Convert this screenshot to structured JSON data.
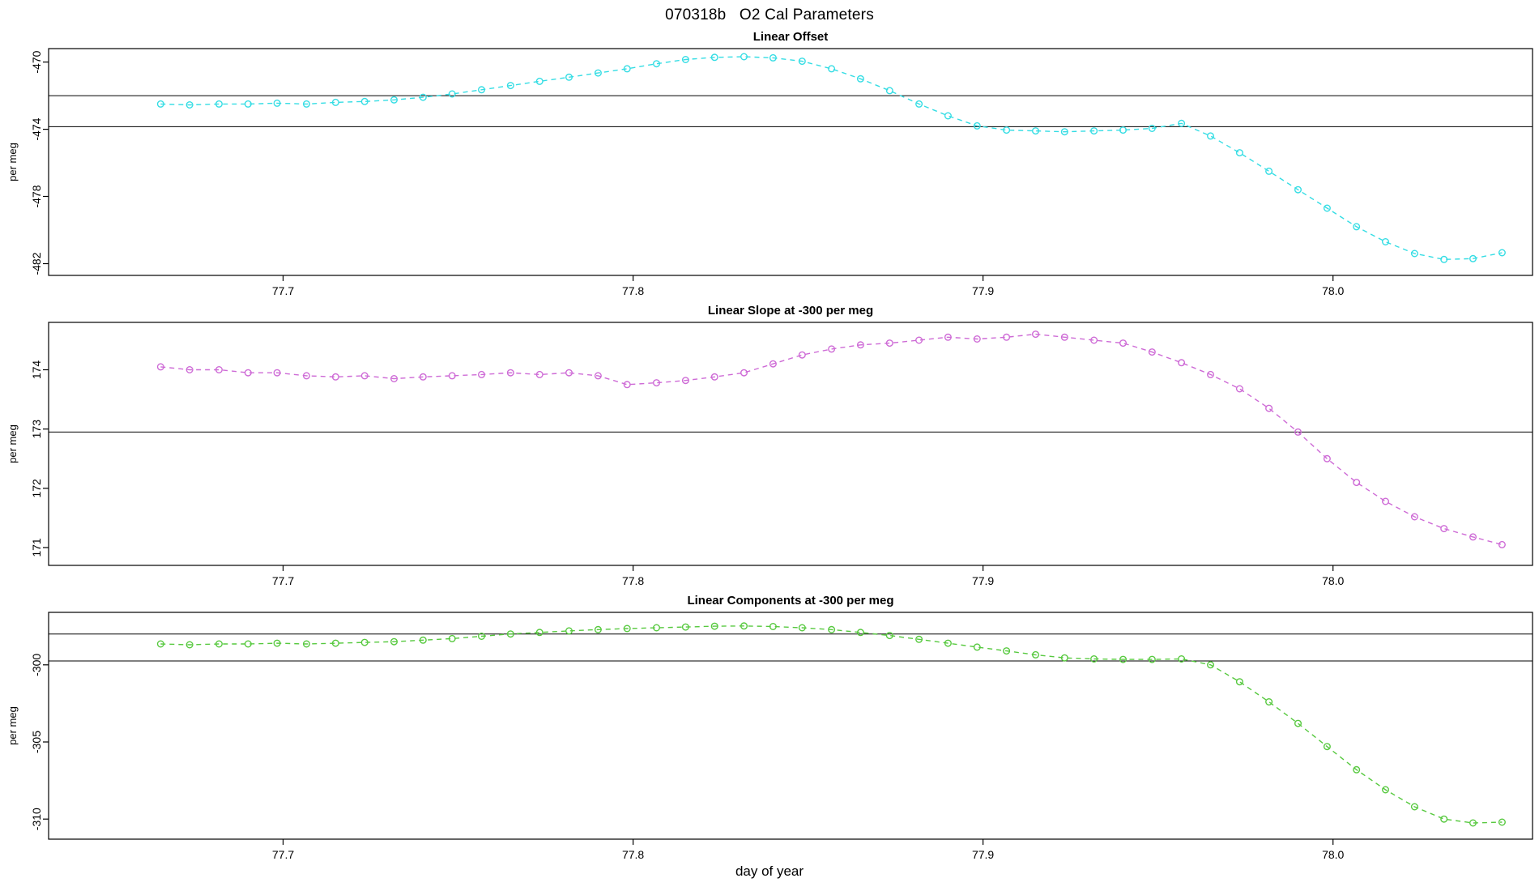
{
  "title": "070318b   O2 Cal Parameters",
  "xlabel": "day of year",
  "chart_data": [
    {
      "type": "line",
      "title": "Linear Offset",
      "ylabel": "per meg",
      "color": "#35dde4",
      "linestyle": "dashed",
      "marker": "open-circle",
      "xlim": [
        77.633,
        78.057
      ],
      "ylim": [
        -482.7,
        -469.2
      ],
      "xticks": [
        77.7,
        77.8,
        77.9,
        78.0
      ],
      "xtick_labels": [
        "77.7",
        "77.8",
        "77.9",
        "78.0"
      ],
      "yticks": [
        -470,
        -474,
        -478,
        -482
      ],
      "ytick_labels": [
        "-470",
        "-474",
        "-478",
        "-482"
      ],
      "hlines": [
        -472.0,
        -473.85
      ],
      "x": [
        77.665,
        77.6733,
        77.6817,
        77.69,
        77.6983,
        77.7067,
        77.715,
        77.7233,
        77.7317,
        77.74,
        77.7483,
        77.7567,
        77.765,
        77.7733,
        77.7817,
        77.79,
        77.7983,
        77.8067,
        77.815,
        77.8233,
        77.8317,
        77.84,
        77.8483,
        77.8567,
        77.865,
        77.8733,
        77.8817,
        77.89,
        77.8983,
        77.9067,
        77.915,
        77.9233,
        77.9317,
        77.94,
        77.9483,
        77.9567,
        77.965,
        77.9733,
        77.9817,
        77.99,
        77.9983,
        78.0067,
        78.015,
        78.0233,
        78.0317,
        78.04,
        78.0483
      ],
      "values": [
        -472.5,
        -472.55,
        -472.5,
        -472.5,
        -472.45,
        -472.5,
        -472.4,
        -472.35,
        -472.25,
        -472.1,
        -471.9,
        -471.65,
        -471.4,
        -471.15,
        -470.9,
        -470.65,
        -470.4,
        -470.1,
        -469.85,
        -469.72,
        -469.68,
        -469.75,
        -469.95,
        -470.4,
        -471.0,
        -471.7,
        -472.5,
        -473.2,
        -473.8,
        -474.05,
        -474.1,
        -474.15,
        -474.1,
        -474.05,
        -473.95,
        -473.65,
        -474.4,
        -475.4,
        -476.5,
        -477.6,
        -478.7,
        -479.8,
        -480.7,
        -481.4,
        -481.75,
        -481.7,
        -481.35
      ]
    },
    {
      "type": "line",
      "title": "Linear Slope at -300 per meg",
      "ylabel": "per meg",
      "color": "#ce6bd6",
      "linestyle": "dashed",
      "marker": "open-circle",
      "xlim": [
        77.633,
        78.057
      ],
      "ylim": [
        170.7,
        174.8
      ],
      "xticks": [
        77.7,
        77.8,
        77.9,
        78.0
      ],
      "xtick_labels": [
        "77.7",
        "77.8",
        "77.9",
        "78.0"
      ],
      "yticks": [
        171,
        172,
        173,
        174
      ],
      "ytick_labels": [
        "171",
        "172",
        "173",
        "174"
      ],
      "hlines": [
        172.95
      ],
      "x": [
        77.665,
        77.6733,
        77.6817,
        77.69,
        77.6983,
        77.7067,
        77.715,
        77.7233,
        77.7317,
        77.74,
        77.7483,
        77.7567,
        77.765,
        77.7733,
        77.7817,
        77.79,
        77.7983,
        77.8067,
        77.815,
        77.8233,
        77.8317,
        77.84,
        77.8483,
        77.8567,
        77.865,
        77.8733,
        77.8817,
        77.89,
        77.8983,
        77.9067,
        77.915,
        77.9233,
        77.9317,
        77.94,
        77.9483,
        77.9567,
        77.965,
        77.9733,
        77.9817,
        77.99,
        77.9983,
        78.0067,
        78.015,
        78.0233,
        78.0317,
        78.04,
        78.0483
      ],
      "values": [
        174.05,
        174.0,
        174.0,
        173.95,
        173.95,
        173.9,
        173.88,
        173.9,
        173.85,
        173.88,
        173.9,
        173.92,
        173.95,
        173.92,
        173.95,
        173.9,
        173.75,
        173.78,
        173.82,
        173.88,
        173.95,
        174.1,
        174.25,
        174.35,
        174.42,
        174.45,
        174.5,
        174.55,
        174.52,
        174.55,
        174.6,
        174.55,
        174.5,
        174.45,
        174.3,
        174.12,
        173.92,
        173.68,
        173.35,
        172.95,
        172.5,
        172.1,
        171.78,
        171.52,
        171.32,
        171.18,
        171.05
      ]
    },
    {
      "type": "line",
      "title": "Linear Components at -300 per meg",
      "ylabel": "per meg",
      "color": "#57c93f",
      "linestyle": "dashed",
      "marker": "open-circle",
      "xlim": [
        77.633,
        78.057
      ],
      "ylim": [
        -311.3,
        -296.6
      ],
      "xticks": [
        77.7,
        77.8,
        77.9,
        78.0
      ],
      "xtick_labels": [
        "77.7",
        "77.8",
        "77.9",
        "78.0"
      ],
      "yticks": [
        -300,
        -305,
        -310
      ],
      "ytick_labels": [
        "-300",
        "-305",
        "-310"
      ],
      "hlines": [
        -298.0,
        -299.75
      ],
      "x": [
        77.665,
        77.6733,
        77.6817,
        77.69,
        77.6983,
        77.7067,
        77.715,
        77.7233,
        77.7317,
        77.74,
        77.7483,
        77.7567,
        77.765,
        77.7733,
        77.7817,
        77.79,
        77.7983,
        77.8067,
        77.815,
        77.8233,
        77.8317,
        77.84,
        77.8483,
        77.8567,
        77.865,
        77.8733,
        77.8817,
        77.89,
        77.8983,
        77.9067,
        77.915,
        77.9233,
        77.9317,
        77.94,
        77.9483,
        77.9567,
        77.965,
        77.9733,
        77.9817,
        77.99,
        77.9983,
        78.0067,
        78.015,
        78.0233,
        78.0317,
        78.04,
        78.0483
      ],
      "values": [
        -298.65,
        -298.7,
        -298.65,
        -298.65,
        -298.6,
        -298.65,
        -298.6,
        -298.55,
        -298.5,
        -298.4,
        -298.3,
        -298.15,
        -298.0,
        -297.9,
        -297.8,
        -297.72,
        -297.65,
        -297.6,
        -297.55,
        -297.5,
        -297.48,
        -297.52,
        -297.6,
        -297.72,
        -297.9,
        -298.1,
        -298.35,
        -298.6,
        -298.85,
        -299.1,
        -299.35,
        -299.55,
        -299.62,
        -299.65,
        -299.65,
        -299.62,
        -300.0,
        -301.1,
        -302.4,
        -303.8,
        -305.3,
        -306.8,
        -308.1,
        -309.2,
        -310.0,
        -310.25,
        -310.2
      ]
    }
  ]
}
